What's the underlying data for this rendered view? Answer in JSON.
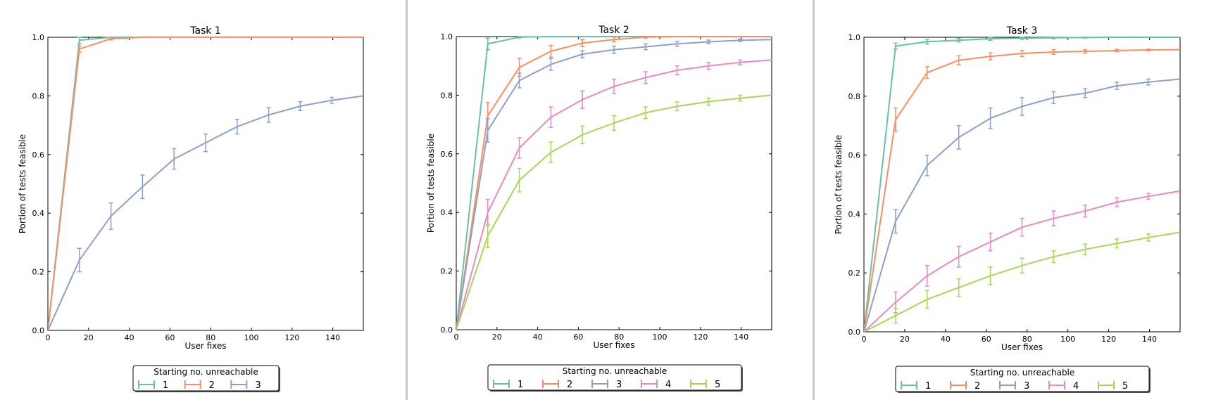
{
  "legend_title": "Starting no. unreachable",
  "colors": {
    "1": "#66c2a5",
    "2": "#fc8d62",
    "3": "#8da0cb",
    "4": "#e78ac3",
    "5": "#a6d854"
  },
  "chart_data": [
    {
      "type": "line",
      "title": "Task 1",
      "xlabel": "User fixes",
      "ylabel": "Portion of tests feasible",
      "xlim": [
        0,
        155
      ],
      "ylim": [
        0.0,
        1.0
      ],
      "xticks": [
        "0",
        "20",
        "40",
        "60",
        "80",
        "100",
        "120",
        "140"
      ],
      "yticks": [
        "0.0",
        "0.2",
        "0.4",
        "0.6",
        "0.8",
        "1.0"
      ],
      "grid": false,
      "legend_position": "bottom-center",
      "legend_title": "Starting no. unreachable",
      "x": [
        0,
        15.5,
        31,
        46.5,
        62,
        77.5,
        93,
        108.5,
        124,
        139.5,
        155
      ],
      "series": [
        {
          "name": "1",
          "values": [
            0,
            0.99,
            1.0,
            1.0,
            1.0,
            1.0,
            1.0,
            1.0,
            1.0,
            1.0,
            1.0
          ],
          "err": [
            0,
            0.012,
            0,
            0,
            0,
            0,
            0,
            0,
            0,
            0,
            0
          ]
        },
        {
          "name": "2",
          "values": [
            0,
            0.96,
            0.995,
            1.0,
            1.0,
            1.0,
            1.0,
            1.0,
            1.0,
            1.0,
            1.0
          ],
          "err": [
            0,
            0.01,
            0.004,
            0,
            0,
            0,
            0,
            0,
            0,
            0,
            0
          ]
        },
        {
          "name": "3",
          "values": [
            0,
            0.24,
            0.39,
            0.49,
            0.585,
            0.64,
            0.695,
            0.735,
            0.765,
            0.785,
            0.8
          ],
          "err": [
            0,
            0.04,
            0.045,
            0.04,
            0.035,
            0.03,
            0.025,
            0.025,
            0.015,
            0.01,
            0
          ]
        }
      ]
    },
    {
      "type": "line",
      "title": "Task 2",
      "xlabel": "User fixes",
      "ylabel": "Portion of tests feasible",
      "xlim": [
        0,
        155
      ],
      "ylim": [
        0.0,
        1.0
      ],
      "xticks": [
        "0",
        "20",
        "40",
        "60",
        "80",
        "100",
        "120",
        "140"
      ],
      "yticks": [
        "0.0",
        "0.2",
        "0.4",
        "0.6",
        "0.8",
        "1.0"
      ],
      "grid": false,
      "legend_position": "bottom-center",
      "legend_title": "Starting no. unreachable",
      "x": [
        0,
        15.5,
        31,
        46.5,
        62,
        77.5,
        93,
        108.5,
        124,
        139.5,
        155
      ],
      "series": [
        {
          "name": "1",
          "values": [
            0,
            0.975,
            0.998,
            1.0,
            1.0,
            1.0,
            1.0,
            1.0,
            1.0,
            1.0,
            1.0
          ],
          "err": [
            0,
            0.02,
            0.003,
            0,
            0,
            0,
            0,
            0,
            0,
            0,
            0
          ]
        },
        {
          "name": "2",
          "values": [
            0,
            0.73,
            0.895,
            0.95,
            0.978,
            0.99,
            0.998,
            1.0,
            1.0,
            1.0,
            1.0
          ],
          "err": [
            0,
            0.045,
            0.03,
            0.02,
            0.012,
            0.008,
            0.003,
            0,
            0,
            0,
            0
          ]
        },
        {
          "name": "3",
          "values": [
            0,
            0.68,
            0.85,
            0.905,
            0.94,
            0.955,
            0.965,
            0.975,
            0.982,
            0.987,
            0.99
          ],
          "err": [
            0,
            0.04,
            0.025,
            0.02,
            0.012,
            0.012,
            0.01,
            0.008,
            0.006,
            0.004,
            0
          ]
        },
        {
          "name": "4",
          "values": [
            0,
            0.4,
            0.62,
            0.725,
            0.785,
            0.83,
            0.86,
            0.885,
            0.9,
            0.912,
            0.92
          ],
          "err": [
            0,
            0.045,
            0.035,
            0.035,
            0.03,
            0.025,
            0.02,
            0.015,
            0.012,
            0.008,
            0
          ]
        },
        {
          "name": "5",
          "values": [
            0,
            0.32,
            0.51,
            0.605,
            0.665,
            0.705,
            0.74,
            0.762,
            0.778,
            0.79,
            0.8
          ],
          "err": [
            0,
            0.04,
            0.04,
            0.035,
            0.03,
            0.025,
            0.02,
            0.015,
            0.012,
            0.01,
            0
          ]
        }
      ]
    },
    {
      "type": "line",
      "title": "Task 3",
      "xlabel": "User fixes",
      "ylabel": "Portion of tests feasible",
      "xlim": [
        0,
        155
      ],
      "ylim": [
        0.0,
        1.0
      ],
      "xticks": [
        "0",
        "20",
        "40",
        "60",
        "80",
        "100",
        "120",
        "140"
      ],
      "yticks": [
        "0.0",
        "0.2",
        "0.4",
        "0.6",
        "0.8",
        "1.0"
      ],
      "grid": false,
      "legend_position": "bottom-center",
      "legend_title": "Starting no. unreachable",
      "x": [
        0,
        15.5,
        31,
        46.5,
        62,
        77.5,
        93,
        108.5,
        124,
        139.5,
        155
      ],
      "series": [
        {
          "name": "1",
          "values": [
            0,
            0.97,
            0.985,
            0.99,
            0.995,
            0.997,
            0.998,
            0.999,
            1.0,
            1.0,
            1.0
          ],
          "err": [
            0,
            0.01,
            0.008,
            0.006,
            0.005,
            0.004,
            0.003,
            0.002,
            0,
            0,
            0
          ]
        },
        {
          "name": "2",
          "values": [
            0,
            0.72,
            0.88,
            0.922,
            0.935,
            0.945,
            0.95,
            0.952,
            0.955,
            0.957,
            0.958
          ],
          "err": [
            0,
            0.04,
            0.02,
            0.015,
            0.012,
            0.01,
            0.008,
            0.006,
            0.004,
            0.003,
            0
          ]
        },
        {
          "name": "3",
          "values": [
            0,
            0.375,
            0.565,
            0.66,
            0.725,
            0.765,
            0.795,
            0.81,
            0.835,
            0.848,
            0.858
          ],
          "err": [
            0,
            0.04,
            0.035,
            0.04,
            0.035,
            0.03,
            0.02,
            0.015,
            0.012,
            0.01,
            0
          ]
        },
        {
          "name": "4",
          "values": [
            0,
            0.1,
            0.19,
            0.255,
            0.305,
            0.355,
            0.385,
            0.41,
            0.44,
            0.46,
            0.478
          ],
          "err": [
            0,
            0.035,
            0.035,
            0.035,
            0.03,
            0.03,
            0.025,
            0.02,
            0.015,
            0.01,
            0
          ]
        },
        {
          "name": "5",
          "values": [
            0,
            0.055,
            0.11,
            0.15,
            0.19,
            0.225,
            0.255,
            0.28,
            0.3,
            0.32,
            0.338
          ],
          "err": [
            0,
            0.025,
            0.03,
            0.03,
            0.03,
            0.025,
            0.02,
            0.018,
            0.015,
            0.012,
            0
          ]
        }
      ]
    }
  ]
}
